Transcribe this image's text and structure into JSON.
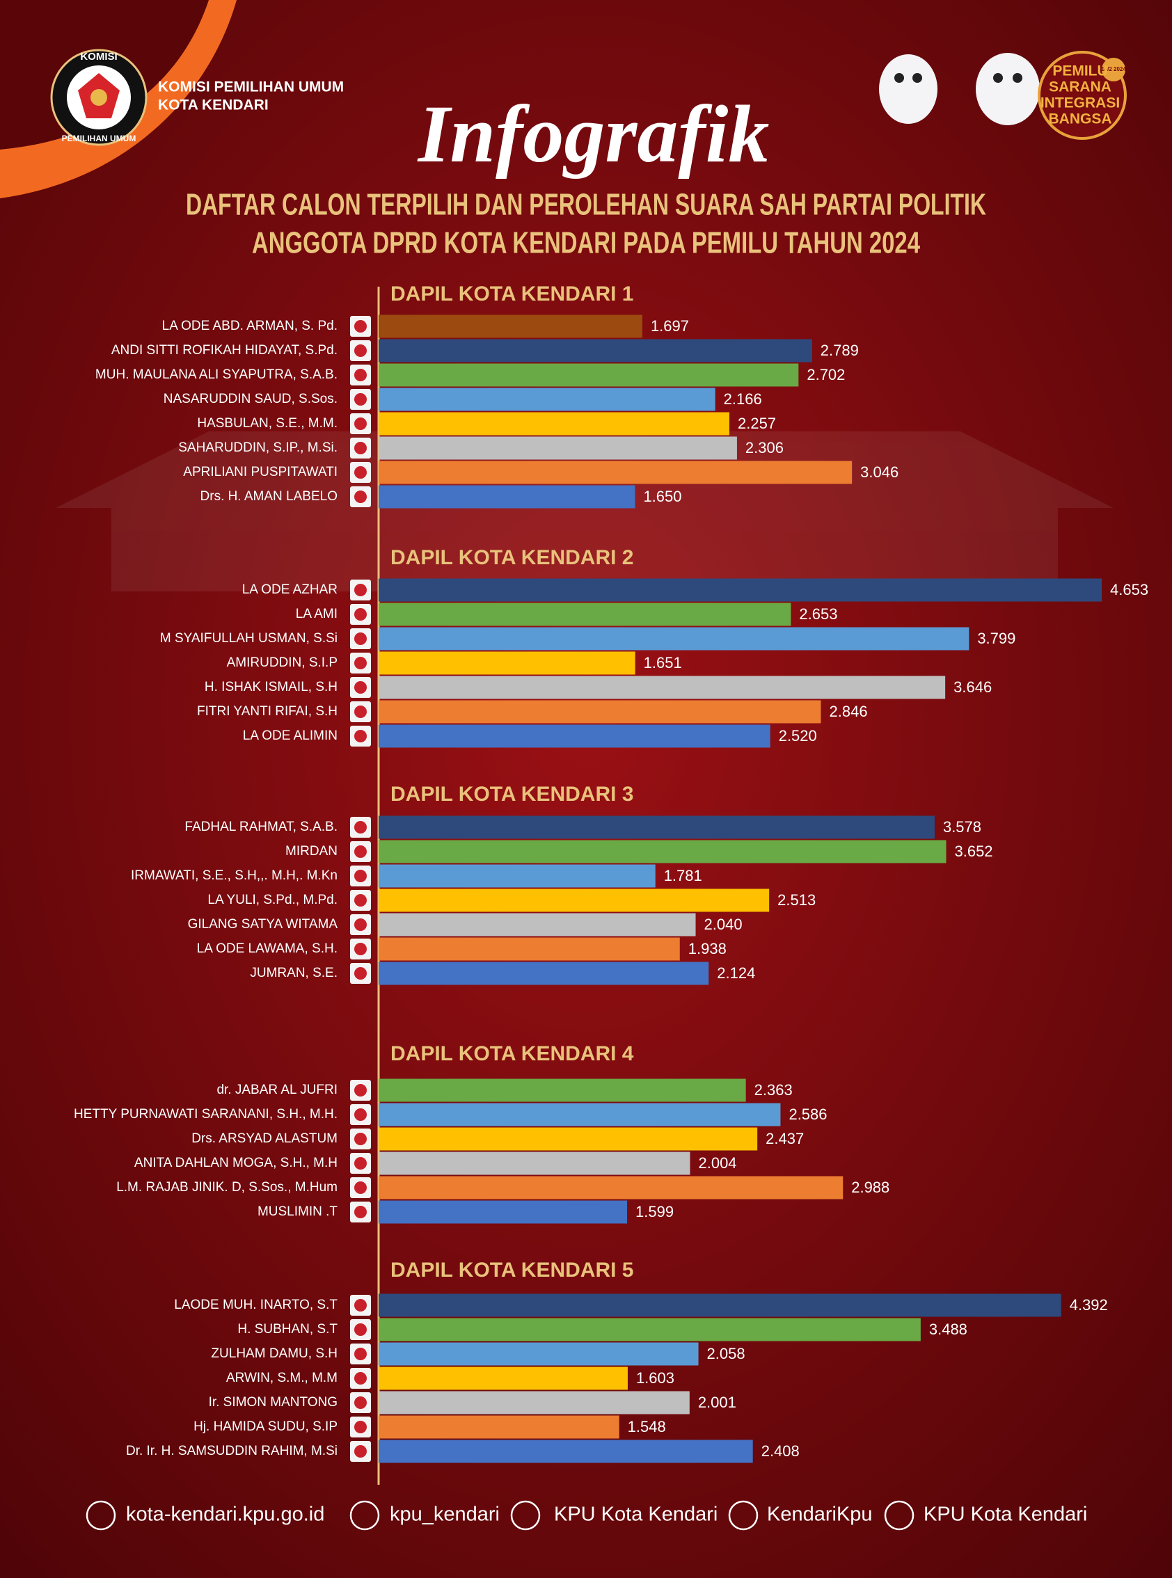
{
  "header": {
    "logo_top": "KOMISI",
    "logo_bottom": "PEMILIHAN UMUM",
    "org_line1": "KOMISI PEMILIHAN UMUM",
    "org_line2": "KOTA KENDARI",
    "title": "Infografik",
    "subtitle_line1": "DAFTAR CALON TERPILIH DAN PEROLEHAN SUARA SAH PARTAI POLITIK",
    "subtitle_line2": "ANGGOTA DPRD KOTA KENDARI PADA PEMILU TAHUN 2024",
    "badge_lines": [
      "PEMILU",
      "SARANA",
      "INTEGRASI",
      "BANGSA"
    ],
    "badge_date": "14/2 2024"
  },
  "chart_data": [
    {
      "type": "bar",
      "orientation": "horizontal",
      "title": "DAPIL KOTA KENDARI 1",
      "categories": [
        "LA ODE ABD. ARMAN, S. Pd.",
        "ANDI SITTI ROFIKAH HIDAYAT, S.Pd.",
        "MUH. MAULANA ALI SYAPUTRA, S.A.B.",
        "NASARUDDIN SAUD, S.Sos.",
        "HASBULAN, S.E., M.M.",
        "SAHARUDDIN, S.IP., M.Si.",
        "APRILIANI PUSPITAWATI",
        "Drs. H. AMAN LABELO"
      ],
      "values": [
        1697,
        2789,
        2702,
        2166,
        2257,
        2306,
        3046,
        1650
      ],
      "value_labels": [
        "1.697",
        "2.789",
        "2.702",
        "2.166",
        "2.257",
        "2.306",
        "3.046",
        "1.650"
      ],
      "colors": [
        "#9c4a10",
        "#2e4a7d",
        "#6aaa46",
        "#5b9bd5",
        "#ffc000",
        "#bfbfbf",
        "#ed7d31",
        "#4472c4"
      ]
    },
    {
      "type": "bar",
      "orientation": "horizontal",
      "title": "DAPIL KOTA KENDARI 2",
      "categories": [
        "LA ODE AZHAR",
        "LA AMI",
        "M SYAIFULLAH USMAN, S.Si",
        "AMIRUDDIN, S.I.P",
        "H. ISHAK ISMAIL, S.H",
        "FITRI YANTI RIFAI, S.H",
        "LA ODE ALIMIN"
      ],
      "values": [
        4653,
        2653,
        3799,
        1651,
        3646,
        2846,
        2520
      ],
      "value_labels": [
        "4.653",
        "2.653",
        "3.799",
        "1.651",
        "3.646",
        "2.846",
        "2.520"
      ],
      "colors": [
        "#2e4a7d",
        "#6aaa46",
        "#5b9bd5",
        "#ffc000",
        "#bfbfbf",
        "#ed7d31",
        "#4472c4"
      ]
    },
    {
      "type": "bar",
      "orientation": "horizontal",
      "title": "DAPIL KOTA KENDARI 3",
      "categories": [
        "FADHAL RAHMAT, S.A.B.",
        "MIRDAN",
        "IRMAWATI, S.E., S.H,,. M.H,. M.Kn",
        "LA YULI, S.Pd., M.Pd.",
        "GILANG SATYA WITAMA",
        "LA ODE LAWAMA, S.H.",
        "JUMRAN, S.E."
      ],
      "values": [
        3578,
        3652,
        1781,
        2513,
        2040,
        1938,
        2124
      ],
      "value_labels": [
        "3.578",
        "3.652",
        "1.781",
        "2.513",
        "2.040",
        "1.938",
        "2.124"
      ],
      "colors": [
        "#2e4a7d",
        "#6aaa46",
        "#5b9bd5",
        "#ffc000",
        "#bfbfbf",
        "#ed7d31",
        "#4472c4"
      ]
    },
    {
      "type": "bar",
      "orientation": "horizontal",
      "title": "DAPIL KOTA KENDARI 4",
      "categories": [
        "dr. JABAR AL JUFRI",
        "HETTY PURNAWATI SARANANI, S.H., M.H.",
        "Drs. ARSYAD ALASTUM",
        "ANITA DAHLAN MOGA, S.H., M.H",
        "L.M. RAJAB JINIK. D, S.Sos., M.Hum",
        "MUSLIMIN .T"
      ],
      "values": [
        2363,
        2586,
        2437,
        2004,
        2988,
        1599
      ],
      "value_labels": [
        "2.363",
        "2.586",
        "2.437",
        "2.004",
        "2.988",
        "1.599"
      ],
      "colors": [
        "#6aaa46",
        "#5b9bd5",
        "#ffc000",
        "#bfbfbf",
        "#ed7d31",
        "#4472c4"
      ]
    },
    {
      "type": "bar",
      "orientation": "horizontal",
      "title": "DAPIL KOTA KENDARI 5",
      "categories": [
        "LAODE MUH. INARTO, S.T",
        "H. SUBHAN, S.T",
        "ZULHAM DAMU, S.H",
        "ARWIN, S.M., M.M",
        "Ir. SIMON MANTONG",
        "Hj. HAMIDA SUDU, S.IP",
        "Dr. Ir. H. SAMSUDDIN RAHIM, M.Si"
      ],
      "values": [
        4392,
        3488,
        2058,
        1603,
        2001,
        1548,
        2408
      ],
      "value_labels": [
        "4.392",
        "3.488",
        "2.058",
        "1.603",
        "2.001",
        "1.548",
        "2.408"
      ],
      "colors": [
        "#2e4a7d",
        "#6aaa46",
        "#5b9bd5",
        "#ffc000",
        "#bfbfbf",
        "#ed7d31",
        "#4472c4"
      ]
    }
  ],
  "footer": {
    "website": "kota-kendari.kpu.go.id",
    "instagram": "kpu_kendari",
    "facebook": "KPU Kota Kendari",
    "twitter": "KendariKpu",
    "youtube": "KPU Kota Kendari"
  }
}
